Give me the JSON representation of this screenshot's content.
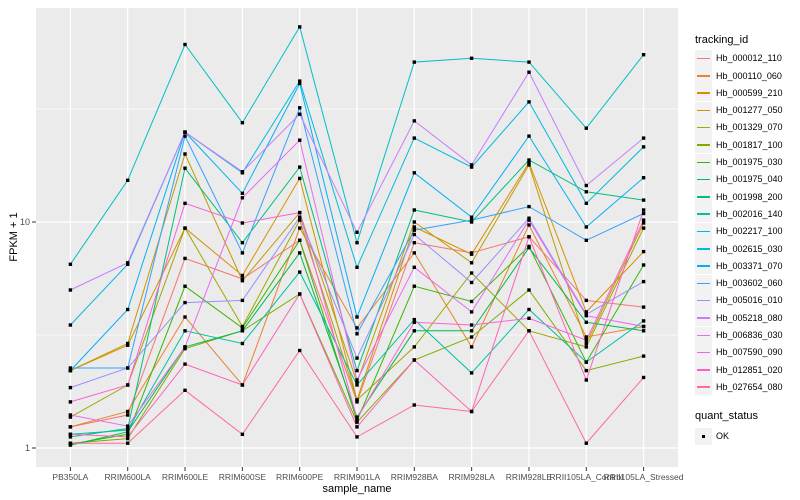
{
  "figure": {
    "background": "#FFFFFF",
    "panel_bg": "#EBEBEB",
    "grid_color": "#FFFFFF",
    "axis_text_color": "#4D4D4D",
    "tick_color": "#333333",
    "legend_key_bg": "#F2F2F2",
    "point_color": "#000000"
  },
  "axes": {
    "x_title": "sample_name",
    "y_title": "FPKM + 1",
    "y_major_ticks": [
      {
        "label": "1",
        "value": 1
      },
      {
        "label": "10",
        "value": 10
      }
    ],
    "y_minor_values": [
      3.1623,
      31.6228
    ]
  },
  "legend": {
    "tracking_title": "tracking_id",
    "quant_title": "quant_status",
    "quant_items": [
      {
        "label": "OK",
        "shape": "square",
        "color": "#000000"
      }
    ]
  },
  "chart_data": {
    "type": "line",
    "title": "",
    "xlabel": "sample_name",
    "ylabel": "FPKM + 1",
    "y_scale": "log10",
    "ylim": [
      0.82,
      88
    ],
    "grid": true,
    "legend_position": "right",
    "point_shape": "black-square",
    "categories": [
      "PB350LA",
      "RRIM600LA",
      "RRIM600LE",
      "RRIM600SE",
      "RRIM600PE",
      "RRIM901LA",
      "RRIM928BA",
      "RRIM928LA",
      "RRIM928LE",
      "RRII105LA_Control",
      "RRII105LA_Stressed"
    ],
    "series": [
      {
        "name": "Hb_000012_110",
        "color": "#F8766D",
        "values": [
          1.24,
          1.4,
          6.9,
          5.6,
          8.3,
          1.6,
          8.1,
          7.3,
          8.6,
          4.5,
          4.2
        ]
      },
      {
        "name": "Hb_000110_060",
        "color": "#EA8331",
        "values": [
          1.24,
          1.45,
          3.8,
          1.9,
          9.4,
          3.4,
          7.3,
          2.8,
          9.7,
          3.1,
          3.45
        ]
      },
      {
        "name": "Hb_000599_210",
        "color": "#D89000",
        "values": [
          2.2,
          2.85,
          9.4,
          5.8,
          15.6,
          1.63,
          9.5,
          7.2,
          18.3,
          4.0,
          7.4
        ]
      },
      {
        "name": "Hb_001277_050",
        "color": "#C09B00",
        "values": [
          2.2,
          2.9,
          20.0,
          5.5,
          11.0,
          1.95,
          10.0,
          6.6,
          17.9,
          2.9,
          9.9
        ]
      },
      {
        "name": "Hb_001329_070",
        "color": "#A3A500",
        "values": [
          1.37,
          1.9,
          9.4,
          3.45,
          10.2,
          1.63,
          2.8,
          5.95,
          3.3,
          2.8,
          9.4
        ]
      },
      {
        "name": "Hb_001817_100",
        "color": "#7CAE00",
        "values": [
          1.05,
          1.1,
          2.75,
          3.3,
          4.8,
          1.3,
          2.45,
          3.1,
          5.0,
          2.2,
          2.55
        ]
      },
      {
        "name": "Hb_001975_030",
        "color": "#39B600",
        "values": [
          1.04,
          1.15,
          5.2,
          3.4,
          8.3,
          1.32,
          5.2,
          4.45,
          7.8,
          2.4,
          6.45
        ]
      },
      {
        "name": "Hb_001975_040",
        "color": "#00BB4E",
        "values": [
          1.03,
          1.18,
          2.8,
          3.3,
          7.3,
          1.37,
          3.3,
          3.3,
          7.7,
          3.6,
          3.3
        ]
      },
      {
        "name": "Hb_001998_200",
        "color": "#00BF7D",
        "values": [
          1.12,
          1.22,
          17.3,
          8.1,
          17.5,
          2.2,
          11.3,
          10.0,
          18.8,
          13.6,
          12.5
        ]
      },
      {
        "name": "Hb_002016_140",
        "color": "#00C1A3",
        "values": [
          1.15,
          1.2,
          3.3,
          2.9,
          6.0,
          1.9,
          3.7,
          2.15,
          4.1,
          2.4,
          3.65
        ]
      },
      {
        "name": "Hb_002217_100",
        "color": "#00BFC4",
        "values": [
          6.5,
          15.3,
          61.0,
          27.5,
          73.0,
          8.1,
          51.0,
          53.0,
          51.0,
          26.0,
          55.0
        ]
      },
      {
        "name": "Hb_002615_030",
        "color": "#00BAE0",
        "values": [
          3.5,
          6.5,
          25.0,
          16.5,
          42.0,
          6.3,
          23.5,
          17.5,
          34.0,
          12.1,
          21.5
        ]
      },
      {
        "name": "Hb_003371_070",
        "color": "#00B0F6",
        "values": [
          2.2,
          4.1,
          25.0,
          13.4,
          41.0,
          3.8,
          16.5,
          10.5,
          24.0,
          9.5,
          15.7
        ]
      },
      {
        "name": "Hb_003602_060",
        "color": "#35A2FF",
        "values": [
          2.26,
          2.26,
          24.0,
          7.3,
          32.0,
          3.2,
          9.2,
          10.2,
          11.7,
          8.3,
          10.9
        ]
      },
      {
        "name": "Hb_005016_010",
        "color": "#9590FF",
        "values": [
          1.85,
          2.26,
          4.4,
          4.5,
          10.5,
          2.5,
          8.8,
          5.4,
          10.4,
          3.9,
          5.45
        ]
      },
      {
        "name": "Hb_005218_080",
        "color": "#C77CFF",
        "values": [
          5.0,
          6.6,
          25.0,
          16.7,
          30.0,
          9.0,
          28.0,
          17.9,
          46.0,
          14.5,
          23.5
        ]
      },
      {
        "name": "Hb_006836_030",
        "color": "#E76BF3",
        "values": [
          1.4,
          1.25,
          2.8,
          12.8,
          23.0,
          2.0,
          6.3,
          4.0,
          10.2,
          3.85,
          3.45
        ]
      },
      {
        "name": "Hb_007590_090",
        "color": "#FA62DB",
        "values": [
          1.6,
          1.9,
          12.1,
          9.9,
          11.0,
          1.35,
          3.6,
          3.5,
          3.75,
          3.0,
          10.2
        ]
      },
      {
        "name": "Hb_012851_020",
        "color": "#FF62BC",
        "values": [
          1.15,
          1.12,
          2.35,
          1.9,
          4.8,
          1.24,
          2.45,
          1.45,
          8.6,
          2.0,
          11.3
        ]
      },
      {
        "name": "Hb_027654_080",
        "color": "#FF6A98",
        "values": [
          1.05,
          1.05,
          1.8,
          1.15,
          2.7,
          1.12,
          1.55,
          1.45,
          3.3,
          1.05,
          2.05
        ]
      }
    ]
  }
}
